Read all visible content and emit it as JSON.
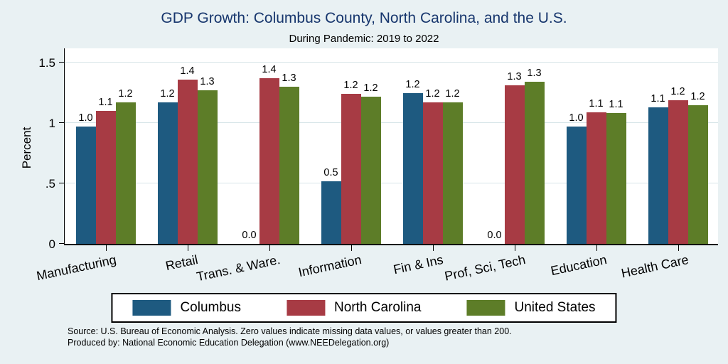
{
  "chart": {
    "title": "GDP Growth: Columbus County, North Carolina, and the U.S.",
    "subtitle": "During Pandemic: 2019 to 2022",
    "ylabel": "Percent",
    "title_color": "#17366d",
    "background_color": "#e9f1f3"
  },
  "notes": {
    "line1": "Source: U.S. Bureau of Economic Analysis. Zero values indicate missing data values, or values greater than 200.",
    "line2": "Produced by: National Economic Education Delegation (www.NEEDelegation.org)"
  },
  "chart_data": {
    "type": "bar",
    "title": "GDP Growth: Columbus County, North Carolina, and the U.S.",
    "subtitle": "During Pandemic: 2019 to 2022",
    "xlabel": "",
    "ylabel": "Percent",
    "grid": true,
    "legend_position": "bottom",
    "ylim": [
      0,
      1.63
    ],
    "yticks": [
      {
        "label": "0",
        "value": 0
      },
      {
        "label": ".5",
        "value": 0.5
      },
      {
        "label": "1",
        "value": 1
      },
      {
        "label": "1.5",
        "value": 1.5
      }
    ],
    "categories": [
      "Manufacturing",
      "Retail",
      "Trans. & Ware.",
      "Information",
      "Fin & Ins",
      "Prof, Sci, Tech",
      "Education",
      "Health Care"
    ],
    "series": [
      {
        "name": "Columbus",
        "color": "#1e5a80",
        "values": [
          0.97,
          1.17,
          0,
          0.52,
          1.25,
          0,
          0.97,
          1.13
        ],
        "labels": [
          "1.0",
          "1.2",
          "0.0",
          "0.5",
          "1.2",
          "0.0",
          "1.0",
          "1.1"
        ]
      },
      {
        "name": "North Carolina",
        "color": "#a73b44",
        "values": [
          1.1,
          1.36,
          1.37,
          1.24,
          1.17,
          1.31,
          1.09,
          1.19
        ],
        "labels": [
          "1.1",
          "1.4",
          "1.4",
          "1.2",
          "1.2",
          "1.3",
          "1.1",
          "1.2"
        ]
      },
      {
        "name": "United States",
        "color": "#5d7d28",
        "values": [
          1.17,
          1.27,
          1.3,
          1.22,
          1.17,
          1.34,
          1.08,
          1.15
        ],
        "labels": [
          "1.2",
          "1.3",
          "1.3",
          "1.2",
          "1.2",
          "1.3",
          "1.1",
          "1.2"
        ]
      }
    ]
  }
}
